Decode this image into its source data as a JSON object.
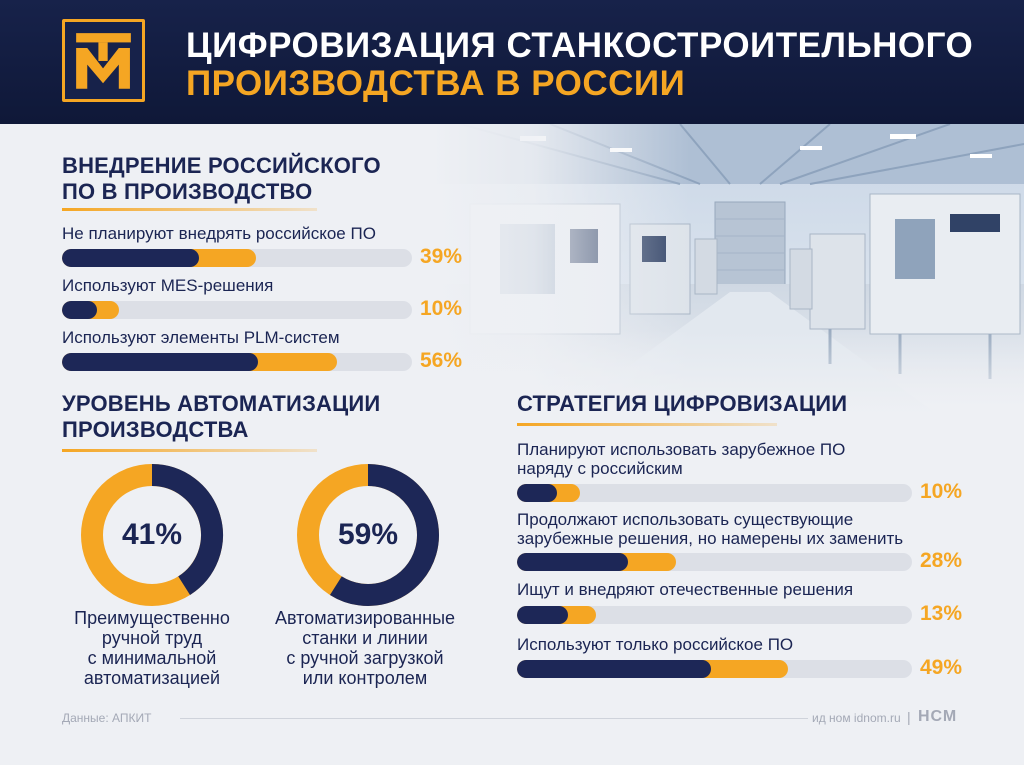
{
  "header": {
    "title_line1": "ЦИФРОВИЗАЦИЯ СТАНКОСТРОИТЕЛЬНОГО",
    "title_line2": "ПРОИЗВОДСТВА В РОССИИ"
  },
  "colors": {
    "navy": "#1d2757",
    "orange": "#f5a623",
    "track": "#dcdfe6",
    "header": "#141e44"
  },
  "icons": {
    "logo": "tm-logo",
    "background": "factory-hall-illustration"
  },
  "chart_data": [
    {
      "type": "bar",
      "title_line1": "ВНЕДРЕНИЕ РОССИЙСКОГО",
      "title_line2": "ПО В ПРОИЗВОДСТВО",
      "categories": [
        "Не планируют внедрять российское ПО",
        "Используют MES-решения",
        "Используют элементы PLM-систем"
      ],
      "values": [
        39,
        10,
        56
      ],
      "value_labels": [
        "39%",
        "10%",
        "56%"
      ],
      "ylim": [
        0,
        100
      ]
    },
    {
      "type": "pie",
      "title_line1": "УРОВЕНЬ АВТОМАТИЗАЦИИ",
      "title_line2": "ПРОИЗВОДСТВА",
      "slices": [
        {
          "value": 41,
          "label": "41%",
          "caption_lines": [
            "Преимущественно",
            "ручной труд",
            "с минимальной",
            "автоматизацией"
          ]
        },
        {
          "value": 59,
          "label": "59%",
          "caption_lines": [
            "Автоматизированные",
            "станки и линии",
            "с ручной загрузкой",
            "или контролем"
          ]
        }
      ]
    },
    {
      "type": "bar",
      "title": "СТРАТЕГИЯ ЦИФРОВИЗАЦИИ",
      "categories": [
        [
          "Планируют использовать зарубежное ПО",
          "наряду с российским"
        ],
        [
          "Продолжают использовать существующие",
          "зарубежные решения, но намерены их заменить"
        ],
        [
          "Ищут и внедряют отечественные решения"
        ],
        [
          "Используют только российское ПО"
        ]
      ],
      "values": [
        10,
        28,
        13,
        49
      ],
      "value_labels": [
        "10%",
        "28%",
        "13%",
        "49%"
      ],
      "ylim": [
        0,
        100
      ]
    }
  ],
  "footer": {
    "source": "Данные: АПКИТ",
    "site": "ид ном idnom.ru",
    "separator": "|",
    "brand": "НСМ"
  }
}
